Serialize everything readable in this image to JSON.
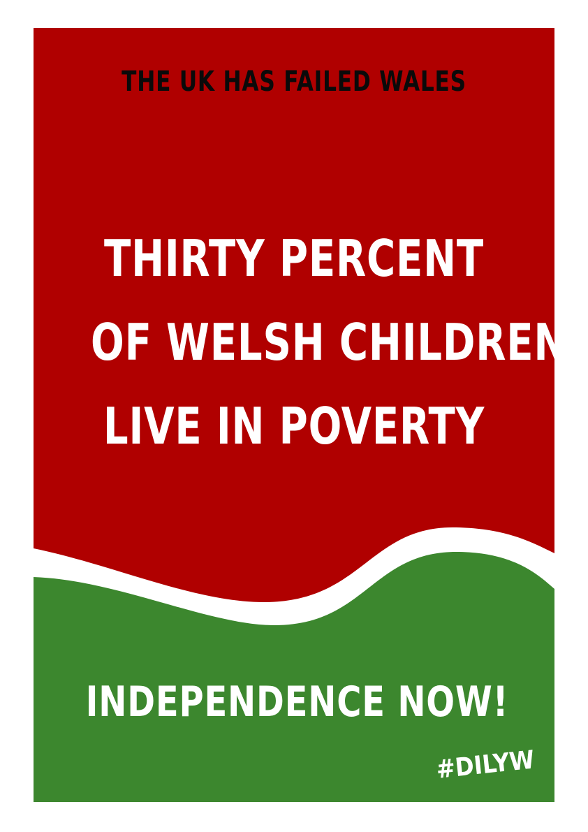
{
  "colors": {
    "red": "#B00000",
    "green": "#3C872E",
    "white": "#FFFFFF",
    "black": "#0A0A0A",
    "page_background": "#FFFFFF"
  },
  "poster": {
    "headline": "THE UK HAS FAILED WALES",
    "statement_lines": [
      "THIRTY PERCENT",
      "OF WELSH CHILDREN",
      "LIVE IN POVERTY"
    ],
    "call_to_action": "INDEPENDENCE NOW!",
    "hashtag": "#DILYW"
  }
}
